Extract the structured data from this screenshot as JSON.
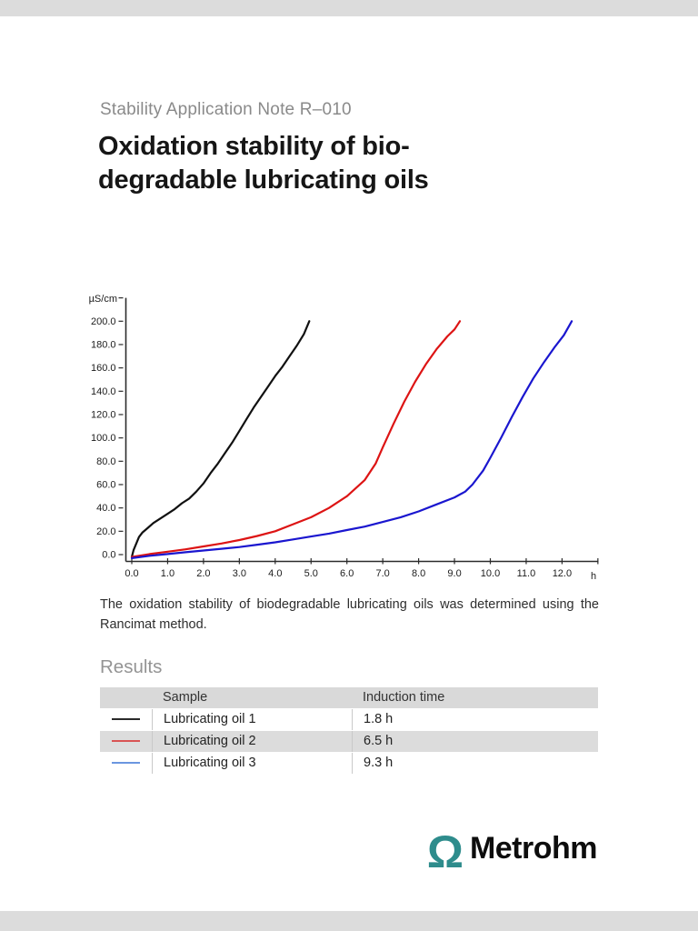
{
  "page": {
    "kicker": "Stability Application Note R–010",
    "title_lines": [
      "Oxidation stability of bio-",
      "degradable lubricating oils"
    ],
    "caption": "The oxidation stability of biodegradable lubricating oils was determined using the Rancimat method.",
    "logo": {
      "omega": "Ω",
      "omega_color": "#2e8c8c",
      "text": "Metrohm"
    }
  },
  "chart_data": {
    "type": "line",
    "title": "",
    "ylabel": "µS/cm",
    "xlabel": "h",
    "xlim": [
      0,
      13
    ],
    "ylim": [
      0,
      220
    ],
    "xtick_step": 1,
    "ytick_step": 20,
    "xtick_label_max": 12,
    "ytick_label_max": 200,
    "grid": false,
    "legend_position": "none",
    "series": [
      {
        "name": "Lubricating oil 1",
        "color": "#111111",
        "induction_time_h": 1.8,
        "points": [
          [
            0,
            -2
          ],
          [
            0.05,
            4
          ],
          [
            0.12,
            9
          ],
          [
            0.2,
            15
          ],
          [
            0.3,
            19
          ],
          [
            0.45,
            23
          ],
          [
            0.6,
            27
          ],
          [
            0.8,
            31
          ],
          [
            1.0,
            35
          ],
          [
            1.2,
            39
          ],
          [
            1.4,
            44
          ],
          [
            1.6,
            48
          ],
          [
            1.8,
            54
          ],
          [
            2.0,
            61
          ],
          [
            2.2,
            70
          ],
          [
            2.4,
            78
          ],
          [
            2.6,
            87
          ],
          [
            2.8,
            96
          ],
          [
            3.0,
            106
          ],
          [
            3.2,
            116
          ],
          [
            3.4,
            126
          ],
          [
            3.6,
            135
          ],
          [
            3.8,
            144
          ],
          [
            4.0,
            153
          ],
          [
            4.2,
            161
          ],
          [
            4.4,
            170
          ],
          [
            4.6,
            179
          ],
          [
            4.8,
            189
          ],
          [
            4.95,
            200
          ]
        ]
      },
      {
        "name": "Lubricating oil 2",
        "color": "#dd1414",
        "induction_time_h": 6.5,
        "points": [
          [
            0,
            -2
          ],
          [
            0.5,
            0.5
          ],
          [
            1.0,
            2.5
          ],
          [
            1.5,
            4.5
          ],
          [
            2.0,
            7
          ],
          [
            2.5,
            9.5
          ],
          [
            3.0,
            12.5
          ],
          [
            3.5,
            16
          ],
          [
            4.0,
            20
          ],
          [
            4.5,
            26
          ],
          [
            5.0,
            32
          ],
          [
            5.5,
            40
          ],
          [
            6.0,
            50
          ],
          [
            6.5,
            64
          ],
          [
            6.8,
            78
          ],
          [
            7.0,
            92
          ],
          [
            7.3,
            112
          ],
          [
            7.6,
            131
          ],
          [
            7.9,
            148
          ],
          [
            8.2,
            163
          ],
          [
            8.5,
            176
          ],
          [
            8.8,
            187
          ],
          [
            9.0,
            193
          ],
          [
            9.15,
            200
          ]
        ]
      },
      {
        "name": "Lubricating oil 3",
        "color": "#1a16cf",
        "induction_time_h": 9.3,
        "points": [
          [
            0,
            -3
          ],
          [
            0.5,
            -1
          ],
          [
            1.0,
            0.5
          ],
          [
            1.5,
            2
          ],
          [
            2.0,
            3.5
          ],
          [
            2.5,
            5
          ],
          [
            3.0,
            6.5
          ],
          [
            3.5,
            8.5
          ],
          [
            4.0,
            10.5
          ],
          [
            4.5,
            13
          ],
          [
            5.0,
            15.5
          ],
          [
            5.5,
            18
          ],
          [
            6.0,
            21
          ],
          [
            6.5,
            24
          ],
          [
            7.0,
            28
          ],
          [
            7.5,
            32
          ],
          [
            8.0,
            37
          ],
          [
            8.5,
            43
          ],
          [
            9.0,
            49
          ],
          [
            9.3,
            54
          ],
          [
            9.5,
            60
          ],
          [
            9.8,
            72
          ],
          [
            10.0,
            83
          ],
          [
            10.3,
            100
          ],
          [
            10.6,
            118
          ],
          [
            10.9,
            135
          ],
          [
            11.2,
            151
          ],
          [
            11.5,
            165
          ],
          [
            11.8,
            178
          ],
          [
            12.05,
            188
          ],
          [
            12.27,
            200
          ]
        ]
      }
    ]
  },
  "results": {
    "heading": "Results",
    "columns": [
      "Sample",
      "Induction time"
    ],
    "rows": [
      {
        "swatch_color": "#2a2a2a",
        "sample": "Lubricating oil 1",
        "induction_time": "1.8 h"
      },
      {
        "swatch_color": "#d95454",
        "sample": "Lubricating oil 2",
        "induction_time": "6.5 h"
      },
      {
        "swatch_color": "#6b96e0",
        "sample": "Lubricating oil 3",
        "induction_time": "9.3 h"
      }
    ]
  }
}
